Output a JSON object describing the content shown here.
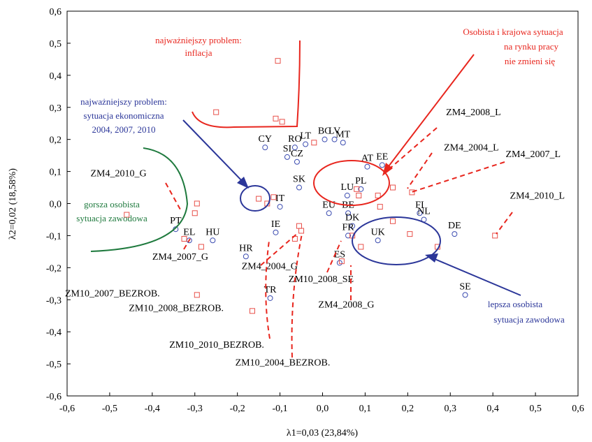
{
  "chart_data": {
    "type": "scatter",
    "title": "",
    "xlabel": "λ1=0,03 (23,84%)",
    "ylabel": "λ2=0,02 (18,58%)",
    "xlim": [
      -0.6,
      0.6
    ],
    "ylim": [
      -0.6,
      0.6
    ],
    "x_ticks": [
      "-0,6",
      "-0,5",
      "-0,4",
      "-0,3",
      "-0,2",
      "-0,1",
      "0,0",
      "0,1",
      "0,2",
      "0,3",
      "0,4",
      "0,5",
      "0,6"
    ],
    "y_ticks": [
      "0,6",
      "0,5",
      "0,4",
      "0,3",
      "0,2",
      "0,1",
      "0,0",
      "-0,1",
      "-0,2",
      "-0,3",
      "-0,4",
      "-0,5",
      "-0,6"
    ],
    "grid": false,
    "colors": {
      "countries": "#3a4bb0",
      "variables": "#e8504a",
      "red_annotation": "#e8261e",
      "blue_annotation": "#2b3699",
      "green_annotation": "#1f7a3e"
    },
    "series": [
      {
        "marker": "circle",
        "points": [
          {
            "label": "CY",
            "x": -0.135,
            "y": 0.175
          },
          {
            "label": "RO",
            "x": -0.065,
            "y": 0.175
          },
          {
            "label": "LT",
            "x": -0.04,
            "y": 0.185
          },
          {
            "label": "BG",
            "x": 0.005,
            "y": 0.2
          },
          {
            "label": "LV",
            "x": 0.028,
            "y": 0.2
          },
          {
            "label": "MT",
            "x": 0.048,
            "y": 0.19
          },
          {
            "label": "SI",
            "x": -0.083,
            "y": 0.145
          },
          {
            "label": "CZ",
            "x": -0.06,
            "y": 0.13
          },
          {
            "label": "AT",
            "x": 0.105,
            "y": 0.115
          },
          {
            "label": "EE",
            "x": 0.14,
            "y": 0.12
          },
          {
            "label": "SK",
            "x": -0.055,
            "y": 0.05
          },
          {
            "label": "PL",
            "x": 0.09,
            "y": 0.045
          },
          {
            "label": "LU",
            "x": 0.058,
            "y": 0.025
          },
          {
            "label": "IT",
            "x": -0.1,
            "y": -0.01
          },
          {
            "label": "EU",
            "x": 0.015,
            "y": -0.03
          },
          {
            "label": "BE",
            "x": 0.06,
            "y": -0.03
          },
          {
            "label": "DK",
            "x": 0.07,
            "y": -0.07
          },
          {
            "label": "FR",
            "x": 0.06,
            "y": -0.1
          },
          {
            "label": "ES",
            "x": 0.04,
            "y": -0.185
          },
          {
            "label": "IE",
            "x": -0.11,
            "y": -0.09
          },
          {
            "label": "HR",
            "x": -0.18,
            "y": -0.165
          },
          {
            "label": "TR",
            "x": -0.123,
            "y": -0.295
          },
          {
            "label": "PT",
            "x": -0.345,
            "y": -0.08
          },
          {
            "label": "EL",
            "x": -0.313,
            "y": -0.115
          },
          {
            "label": "HU",
            "x": -0.258,
            "y": -0.115
          },
          {
            "label": "UK",
            "x": 0.13,
            "y": -0.115
          },
          {
            "label": "FI",
            "x": 0.228,
            "y": -0.03
          },
          {
            "label": "NL",
            "x": 0.238,
            "y": -0.05
          },
          {
            "label": "DE",
            "x": 0.31,
            "y": -0.095
          },
          {
            "label": "SE",
            "x": 0.335,
            "y": -0.285
          }
        ]
      },
      {
        "marker": "square",
        "points": [
          {
            "x": -0.105,
            "y": 0.445
          },
          {
            "x": -0.25,
            "y": 0.285
          },
          {
            "x": -0.11,
            "y": 0.265
          },
          {
            "x": -0.095,
            "y": 0.255
          },
          {
            "x": -0.02,
            "y": 0.19
          },
          {
            "x": 0.165,
            "y": 0.05
          },
          {
            "x": 0.21,
            "y": 0.035
          },
          {
            "x": 0.08,
            "y": 0.045
          },
          {
            "x": 0.085,
            "y": 0.025
          },
          {
            "x": 0.13,
            "y": 0.025
          },
          {
            "x": 0.135,
            "y": -0.01
          },
          {
            "x": 0.09,
            "y": -0.135
          },
          {
            "x": 0.07,
            "y": -0.1
          },
          {
            "x": 0.045,
            "y": -0.18
          },
          {
            "x": 0.165,
            "y": -0.055
          },
          {
            "x": 0.205,
            "y": -0.095
          },
          {
            "x": 0.27,
            "y": -0.135
          },
          {
            "x": 0.405,
            "y": -0.1
          },
          {
            "x": -0.46,
            "y": -0.035
          },
          {
            "x": -0.295,
            "y": 0.0
          },
          {
            "x": -0.3,
            "y": -0.03
          },
          {
            "x": -0.285,
            "y": -0.135
          },
          {
            "x": -0.325,
            "y": -0.11
          },
          {
            "x": -0.15,
            "y": 0.015
          },
          {
            "x": -0.13,
            "y": 0.0
          },
          {
            "x": -0.115,
            "y": 0.02
          },
          {
            "x": -0.055,
            "y": -0.07
          },
          {
            "x": -0.05,
            "y": -0.085
          },
          {
            "x": -0.065,
            "y": -0.11
          },
          {
            "x": -0.295,
            "y": -0.285
          },
          {
            "x": -0.165,
            "y": -0.335
          }
        ]
      }
    ],
    "annotations": [
      {
        "text": "ZM4_2008_L",
        "x": 0.29,
        "y": 0.275
      },
      {
        "text": "ZM4_2004_L",
        "x": 0.285,
        "y": 0.165
      },
      {
        "text": "ZM4_2007_L",
        "x": 0.43,
        "y": 0.145
      },
      {
        "text": "ZM4_2010_L",
        "x": 0.44,
        "y": 0.015
      },
      {
        "text": "ZM4_2010_G",
        "x": -0.545,
        "y": 0.085
      },
      {
        "text": "ZM4_2007_G",
        "x": -0.4,
        "y": -0.175
      },
      {
        "text": "ZM4_2004_G",
        "x": -0.19,
        "y": -0.205
      },
      {
        "text": "ZM10_2008_SE",
        "x": -0.08,
        "y": -0.245
      },
      {
        "text": "ZM4_2008_G",
        "x": -0.01,
        "y": -0.325
      },
      {
        "text": "ZM10_2007_BEZROB.",
        "x": -0.605,
        "y": -0.29
      },
      {
        "text": "ZM10_2008_BEZROB.",
        "x": -0.455,
        "y": -0.335
      },
      {
        "text": "ZM10_2010_BEZROB.",
        "x": -0.36,
        "y": -0.45
      },
      {
        "text": "ZM10_2004_BEZROB.",
        "x": -0.205,
        "y": -0.505
      }
    ],
    "callouts": {
      "inflacja": [
        "najważniejszy problem:",
        "inflacja"
      ],
      "rynek_pracy": [
        "Osobista i krajowa sytuacja",
        "na rynku pracy",
        "nie zmieni się"
      ],
      "ekonomiczna": [
        "najważniejszy problem:",
        "sytuacja ekonomiczna",
        "2004, 2007, 2010"
      ],
      "gorsza": [
        "gorsza osobista",
        "sytuacja zawodowa"
      ],
      "lepsza": [
        "lepsza osobista",
        "sytuacja zawodowa"
      ]
    }
  }
}
